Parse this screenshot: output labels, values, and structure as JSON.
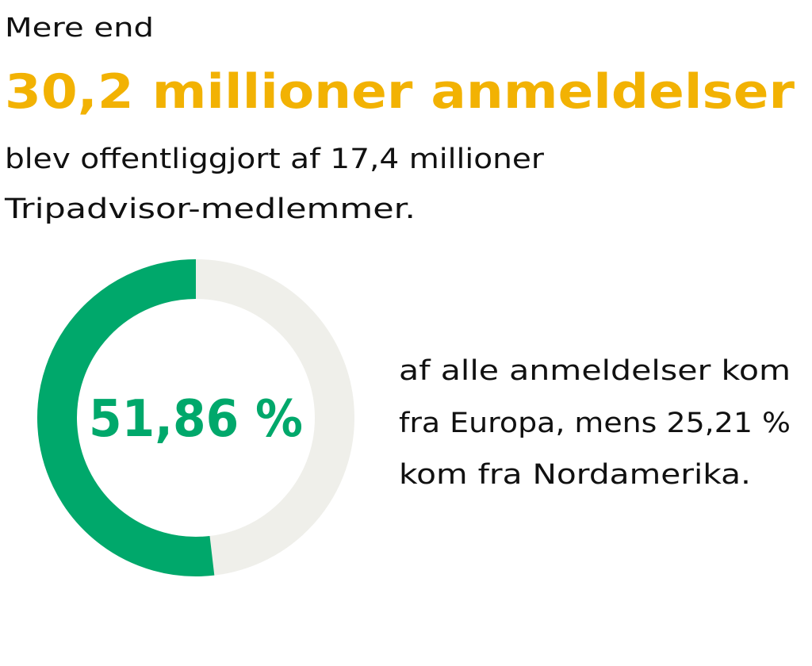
{
  "intro": "Mere end",
  "headline": "30,2 millioner anmeldelser",
  "body": [
    "blev offentliggjort af 17,4 millioner",
    "Tripadvisor-medlemmer."
  ],
  "donut": {
    "value": 51.86,
    "label": "51,86 %",
    "color": "#00a86b",
    "track_color": "#efefea"
  },
  "caption": [
    "af alle anmeldelser kom",
    "fra Europa, mens 25,21 %",
    "kom fra Nordamerika."
  ]
}
